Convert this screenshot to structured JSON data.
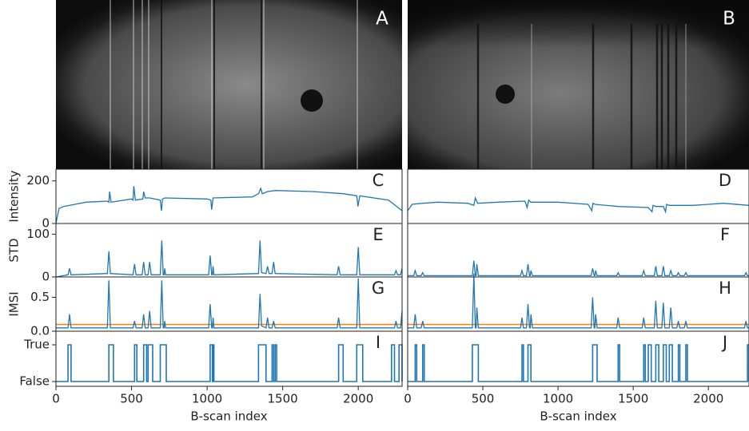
{
  "images": [
    {
      "label": "A"
    },
    {
      "label": "B"
    }
  ],
  "chart_data": [
    {
      "type": "line",
      "label": "C",
      "y_label": "Intensity",
      "color": "#1f77b4",
      "xlim": [
        0,
        2290
      ],
      "ylim": [
        0,
        255
      ],
      "yticks": [
        0,
        200
      ],
      "x": [
        0,
        20,
        50,
        200,
        340,
        350,
        355,
        365,
        500,
        510,
        515,
        525,
        575,
        580,
        590,
        620,
        690,
        698,
        705,
        720,
        1000,
        1025,
        1030,
        1040,
        1300,
        1340,
        1355,
        1365,
        1400,
        1450,
        1700,
        1900,
        1990,
        1998,
        2010,
        2200,
        2290
      ],
      "values": [
        0,
        70,
        80,
        100,
        105,
        100,
        150,
        100,
        115,
        110,
        175,
        110,
        115,
        150,
        120,
        120,
        110,
        60,
        115,
        120,
        115,
        110,
        65,
        120,
        125,
        140,
        165,
        140,
        150,
        155,
        150,
        140,
        130,
        80,
        130,
        110,
        60
      ]
    },
    {
      "type": "line",
      "label": "D",
      "color": "#1f77b4",
      "xlim": [
        0,
        2270
      ],
      "ylim": [
        0,
        255
      ],
      "x": [
        0,
        30,
        100,
        200,
        400,
        440,
        450,
        465,
        600,
        780,
        795,
        805,
        820,
        1000,
        1200,
        1225,
        1232,
        1245,
        1400,
        1600,
        1625,
        1632,
        1650,
        1700,
        1715,
        1722,
        1740,
        1900,
        2100,
        2270
      ],
      "values": [
        60,
        90,
        95,
        100,
        95,
        85,
        120,
        95,
        100,
        105,
        75,
        110,
        100,
        100,
        90,
        60,
        95,
        90,
        80,
        75,
        55,
        85,
        80,
        80,
        55,
        90,
        85,
        85,
        95,
        85
      ]
    },
    {
      "type": "line",
      "label": "E",
      "y_label": "STD",
      "color": "#1f77b4",
      "xlim": [
        0,
        2290
      ],
      "ylim": [
        0,
        125
      ],
      "yticks": [
        0,
        100
      ],
      "x": [
        0,
        80,
        90,
        100,
        340,
        350,
        360,
        510,
        520,
        530,
        570,
        580,
        590,
        610,
        620,
        630,
        690,
        700,
        710,
        715,
        720,
        725,
        1010,
        1020,
        1030,
        1035,
        1040,
        1045,
        1340,
        1350,
        1360,
        1390,
        1400,
        1410,
        1430,
        1440,
        1450,
        1860,
        1870,
        1880,
        1990,
        2000,
        2010,
        2240,
        2250,
        2260,
        2280,
        2290
      ],
      "values": [
        0,
        5,
        20,
        5,
        8,
        60,
        8,
        5,
        30,
        5,
        5,
        35,
        5,
        5,
        35,
        5,
        5,
        85,
        5,
        5,
        20,
        5,
        5,
        50,
        5,
        5,
        25,
        5,
        8,
        85,
        10,
        8,
        25,
        8,
        8,
        35,
        8,
        5,
        25,
        5,
        5,
        70,
        5,
        5,
        15,
        5,
        5,
        20
      ]
    },
    {
      "type": "line",
      "label": "F",
      "color": "#1f77b4",
      "xlim": [
        0,
        2270
      ],
      "ylim": [
        0,
        125
      ],
      "x": [
        0,
        40,
        50,
        60,
        90,
        100,
        110,
        430,
        440,
        450,
        455,
        460,
        470,
        750,
        760,
        770,
        790,
        800,
        810,
        815,
        820,
        830,
        1220,
        1230,
        1240,
        1245,
        1250,
        1260,
        1390,
        1400,
        1410,
        1560,
        1570,
        1580,
        1640,
        1650,
        1660,
        1690,
        1700,
        1710,
        1740,
        1750,
        1760,
        1790,
        1800,
        1810,
        1840,
        1850,
        1860,
        2240,
        2250,
        2260,
        2270
      ],
      "values": [
        3,
        3,
        15,
        3,
        3,
        10,
        3,
        3,
        38,
        3,
        3,
        30,
        3,
        3,
        15,
        3,
        3,
        30,
        3,
        3,
        15,
        3,
        3,
        20,
        3,
        3,
        15,
        3,
        3,
        10,
        3,
        3,
        15,
        3,
        3,
        25,
        3,
        3,
        25,
        3,
        3,
        15,
        3,
        3,
        10,
        3,
        3,
        10,
        3,
        3,
        10,
        3,
        3
      ]
    },
    {
      "type": "line",
      "label": "G",
      "y_label": "IMSI",
      "color": "#1f77b4",
      "hline": 0.1,
      "hline_color": "#ff7f0e",
      "xlim": [
        0,
        2290
      ],
      "ylim": [
        0,
        0.8
      ],
      "yticks": [
        {
          "value": 0,
          "label": "0.0"
        },
        0.5
      ],
      "x": [
        0,
        80,
        90,
        100,
        340,
        350,
        360,
        510,
        520,
        530,
        570,
        580,
        590,
        610,
        620,
        630,
        690,
        700,
        710,
        715,
        720,
        725,
        1010,
        1020,
        1030,
        1035,
        1040,
        1045,
        1340,
        1350,
        1360,
        1390,
        1400,
        1410,
        1430,
        1440,
        1450,
        1860,
        1870,
        1880,
        1990,
        2000,
        2010,
        2240,
        2250,
        2260,
        2280,
        2290
      ],
      "values": [
        0.05,
        0.05,
        0.25,
        0.05,
        0.05,
        0.75,
        0.05,
        0.05,
        0.15,
        0.05,
        0.05,
        0.25,
        0.05,
        0.05,
        0.3,
        0.05,
        0.05,
        0.75,
        0.05,
        0.05,
        0.15,
        0.05,
        0.05,
        0.4,
        0.05,
        0.05,
        0.2,
        0.05,
        0.05,
        0.55,
        0.08,
        0.05,
        0.2,
        0.05,
        0.05,
        0.15,
        0.05,
        0.05,
        0.2,
        0.05,
        0.05,
        0.78,
        0.05,
        0.05,
        0.15,
        0.05,
        0.05,
        0.3
      ]
    },
    {
      "type": "line",
      "label": "H",
      "color": "#1f77b4",
      "hline": 0.1,
      "hline_color": "#ff7f0e",
      "xlim": [
        0,
        2270
      ],
      "ylim": [
        0,
        0.8
      ],
      "x": [
        0,
        40,
        50,
        60,
        90,
        100,
        110,
        430,
        440,
        450,
        455,
        460,
        470,
        750,
        760,
        770,
        790,
        800,
        810,
        815,
        820,
        830,
        1220,
        1230,
        1240,
        1245,
        1250,
        1260,
        1390,
        1400,
        1410,
        1560,
        1570,
        1580,
        1640,
        1650,
        1660,
        1690,
        1700,
        1710,
        1740,
        1750,
        1760,
        1790,
        1800,
        1810,
        1840,
        1850,
        1860,
        2240,
        2250,
        2260,
        2270
      ],
      "values": [
        0.05,
        0.05,
        0.25,
        0.05,
        0.05,
        0.15,
        0.05,
        0.05,
        0.85,
        0.05,
        0.05,
        0.35,
        0.05,
        0.05,
        0.2,
        0.05,
        0.05,
        0.4,
        0.05,
        0.05,
        0.25,
        0.05,
        0.05,
        0.5,
        0.05,
        0.05,
        0.25,
        0.05,
        0.05,
        0.2,
        0.05,
        0.05,
        0.2,
        0.05,
        0.05,
        0.45,
        0.05,
        0.05,
        0.42,
        0.05,
        0.05,
        0.35,
        0.05,
        0.05,
        0.15,
        0.05,
        0.05,
        0.15,
        0.05,
        0.05,
        0.15,
        0.05,
        0.05
      ]
    },
    {
      "type": "step",
      "label": "I",
      "color": "#1f77b4",
      "xlim": [
        0,
        2290
      ],
      "ylim": [
        -0.13,
        1.37
      ],
      "yticks": [
        {
          "value": 0,
          "label": "False"
        },
        {
          "value": 1,
          "label": "True"
        }
      ],
      "xticks": [
        0,
        500,
        1000,
        1500,
        2000
      ],
      "x_label": "B-scan index",
      "x": [
        0,
        80,
        80,
        100,
        100,
        350,
        350,
        380,
        380,
        520,
        520,
        535,
        535,
        580,
        580,
        600,
        600,
        610,
        610,
        640,
        640,
        690,
        690,
        730,
        730,
        1020,
        1020,
        1035,
        1035,
        1040,
        1040,
        1045,
        1045,
        1340,
        1340,
        1390,
        1390,
        1430,
        1430,
        1440,
        1440,
        1450,
        1450,
        1460,
        1460,
        1870,
        1870,
        1900,
        1900,
        1990,
        1990,
        2030,
        2030,
        2220,
        2220,
        2240,
        2240,
        2270,
        2270,
        2290,
        2290
      ],
      "values": [
        0,
        0,
        1,
        1,
        0,
        0,
        1,
        1,
        0,
        0,
        1,
        1,
        0,
        0,
        1,
        1,
        0,
        0,
        1,
        1,
        0,
        0,
        1,
        1,
        0,
        0,
        1,
        1,
        0,
        0,
        1,
        1,
        0,
        0,
        1,
        1,
        0,
        0,
        1,
        1,
        0,
        0,
        1,
        1,
        0,
        0,
        1,
        1,
        0,
        0,
        1,
        1,
        0,
        0,
        1,
        1,
        0,
        0,
        1,
        1,
        0
      ]
    },
    {
      "type": "step",
      "label": "J",
      "color": "#1f77b4",
      "xlim": [
        0,
        2270
      ],
      "ylim": [
        -0.13,
        1.37
      ],
      "xticks": [
        0,
        500,
        1000,
        1500,
        2000
      ],
      "x_label": "B-scan index",
      "x": [
        0,
        50,
        50,
        60,
        60,
        100,
        100,
        110,
        110,
        430,
        430,
        470,
        470,
        760,
        760,
        770,
        770,
        800,
        800,
        820,
        820,
        1230,
        1230,
        1260,
        1260,
        1400,
        1400,
        1410,
        1410,
        1570,
        1570,
        1580,
        1580,
        1600,
        1600,
        1620,
        1620,
        1650,
        1650,
        1670,
        1670,
        1700,
        1700,
        1720,
        1720,
        1740,
        1740,
        1760,
        1760,
        1800,
        1800,
        1810,
        1810,
        1850,
        1850,
        1860,
        1860,
        2260,
        2260,
        2270,
        2270
      ],
      "values": [
        0,
        0,
        1,
        1,
        0,
        0,
        1,
        1,
        0,
        0,
        1,
        1,
        0,
        0,
        1,
        1,
        0,
        0,
        1,
        1,
        0,
        0,
        1,
        1,
        0,
        0,
        1,
        1,
        0,
        0,
        1,
        1,
        0,
        0,
        1,
        1,
        0,
        0,
        1,
        1,
        0,
        0,
        1,
        1,
        0,
        0,
        1,
        1,
        0,
        0,
        1,
        1,
        0,
        0,
        1,
        1,
        0,
        0,
        1,
        1,
        0
      ]
    }
  ]
}
